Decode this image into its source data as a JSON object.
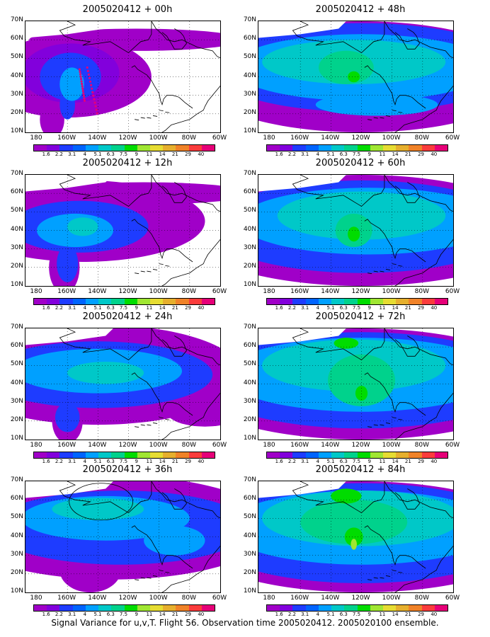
{
  "caption": "Signal Variance for u,v,T. Flight 56. Observation time 2005020412. 2005020100 ensemble.",
  "chart_data": [
    {
      "type": "heatmap",
      "title": "2005020412 + 00h",
      "lead": "00h",
      "track": true,
      "ring": false
    },
    {
      "type": "heatmap",
      "title": "2005020412 + 12h",
      "lead": "12h",
      "track": false,
      "ring": false
    },
    {
      "type": "heatmap",
      "title": "2005020412 + 24h",
      "lead": "24h",
      "track": false,
      "ring": false
    },
    {
      "type": "heatmap",
      "title": "2005020412 + 36h",
      "lead": "36h",
      "track": false,
      "ring": true
    },
    {
      "type": "heatmap",
      "title": "2005020412 + 48h",
      "lead": "48h",
      "track": false,
      "ring": false
    },
    {
      "type": "heatmap",
      "title": "2005020412 + 60h",
      "lead": "60h",
      "track": false,
      "ring": false
    },
    {
      "type": "heatmap",
      "title": "2005020412 + 72h",
      "lead": "72h",
      "track": false,
      "ring": false
    },
    {
      "type": "heatmap",
      "title": "2005020412 + 84h",
      "lead": "84h",
      "track": false,
      "ring": false
    }
  ],
  "axes": {
    "y_ticks": [
      "70N",
      "60N",
      "50N",
      "40N",
      "30N",
      "20N",
      "10N"
    ],
    "x_ticks": [
      "180",
      "160W",
      "140W",
      "120W",
      "100W",
      "80W",
      "60W"
    ]
  },
  "colorbar": {
    "labels": [
      "1.6",
      "2.2",
      "3.1",
      "4",
      "5.1",
      "6.3",
      "7.5",
      "9",
      "11",
      "14",
      "21",
      "29",
      "40"
    ],
    "colors": [
      "#a000c8",
      "#8200dc",
      "#1e3cff",
      "#0064ff",
      "#00a0ff",
      "#00c8c8",
      "#00d28c",
      "#00dc00",
      "#a0e632",
      "#e6dc32",
      "#e6af2d",
      "#f08228",
      "#fa3c3c",
      "#e60078"
    ]
  },
  "map_colors": {
    "purple": "#a000c8",
    "violet": "#8200dc",
    "blue": "#1e3cff",
    "midblue": "#0064ff",
    "lightblue": "#00a0ff",
    "cyan": "#00c8c8",
    "teal": "#00d28c",
    "green": "#00dc00",
    "yellowgreen": "#a0e632",
    "track": "#e60078"
  }
}
